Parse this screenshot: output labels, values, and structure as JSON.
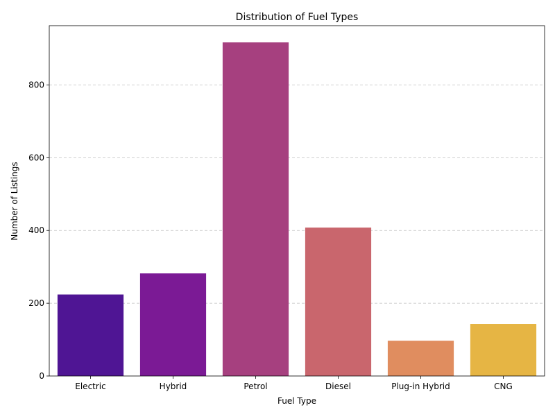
{
  "chart_data": {
    "type": "bar",
    "title": "Distribution of Fuel Types",
    "xlabel": "Fuel Type",
    "ylabel": "Number of Listings",
    "categories": [
      "Electric",
      "Hybrid",
      "Petrol",
      "Diesel",
      "Plug-in Hybrid",
      "CNG"
    ],
    "values": [
      224,
      282,
      917,
      408,
      97,
      143
    ],
    "colors": [
      "#4f1594",
      "#7b1a95",
      "#a6407f",
      "#c9666d",
      "#e08d5f",
      "#e6b544"
    ],
    "ylim": [
      0,
      963
    ],
    "yticks": [
      "0",
      "200",
      "400",
      "600",
      "800"
    ],
    "grid": "y-dashed"
  }
}
